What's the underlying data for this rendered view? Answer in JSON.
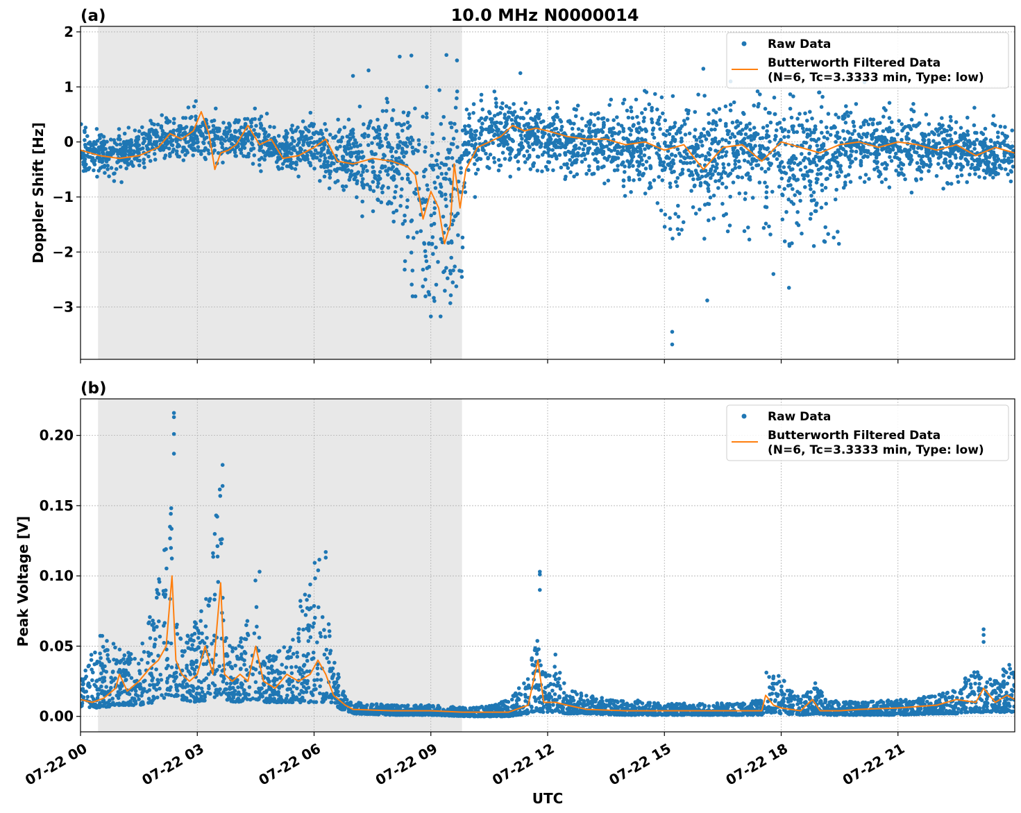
{
  "figure": {
    "title": "10.0 MHz N0000014",
    "xlabel": "UTC"
  },
  "chart_data": [
    {
      "type": "scatter",
      "panel_label": "(a)",
      "ylabel": "Doppler Shift [Hz]",
      "xlim_hours": [
        0,
        24
      ],
      "ylim": [
        -3.95,
        2.1
      ],
      "yticks": [
        2,
        1,
        0,
        -1,
        -2,
        -3
      ],
      "ytick_labels": [
        "2",
        "1",
        "0",
        "−1",
        "−2",
        "−3"
      ],
      "grid": true,
      "shaded_x_hours": [
        0.45,
        9.8
      ],
      "legend_position": "top-right",
      "legend": [
        "Raw Data",
        "Butterworth Filtered Data",
        "(N=6, Tc=3.3333 min, Type: low)"
      ],
      "series": [
        {
          "name": "Raw Data",
          "style": "dots",
          "color": "#1f77b4",
          "band_center_x": [
            0,
            1,
            2,
            3,
            3.5,
            4,
            4.5,
            5,
            6,
            6.5,
            7,
            7.5,
            8,
            8.5,
            9,
            9.5,
            10,
            10.5,
            11,
            12,
            13,
            14,
            15,
            16,
            17,
            18,
            19,
            20,
            21,
            22,
            23,
            24
          ],
          "band_center_y": [
            -0.2,
            -0.25,
            0.05,
            0.15,
            0.1,
            0.0,
            0.1,
            -0.15,
            -0.05,
            -0.3,
            -0.35,
            -0.4,
            -0.45,
            -0.5,
            -0.55,
            -0.5,
            -0.05,
            0.1,
            0.15,
            0.05,
            0.0,
            -0.1,
            -0.05,
            -0.2,
            -0.1,
            -0.15,
            -0.2,
            -0.05,
            -0.1,
            -0.1,
            -0.2,
            -0.2
          ],
          "band_width_y": [
            0.35,
            0.35,
            0.35,
            0.4,
            0.4,
            0.35,
            0.4,
            0.35,
            0.4,
            0.5,
            0.7,
            0.8,
            0.9,
            1.1,
            1.2,
            1.2,
            0.6,
            0.6,
            0.5,
            0.5,
            0.5,
            0.6,
            0.7,
            0.8,
            0.8,
            0.8,
            0.8,
            0.55,
            0.5,
            0.45,
            0.45,
            0.45
          ],
          "outlier_points": [
            [
              7.0,
              1.2
            ],
            [
              7.4,
              1.3
            ],
            [
              8.2,
              1.55
            ],
            [
              8.5,
              1.57
            ],
            [
              9.4,
              1.58
            ],
            [
              9.0,
              -3.17
            ],
            [
              9.25,
              -3.17
            ],
            [
              9.5,
              -2.93
            ],
            [
              15.2,
              -3.45
            ],
            [
              15.2,
              -3.68
            ],
            [
              16.0,
              1.33
            ],
            [
              16.7,
              1.1
            ],
            [
              18.0,
              1.15
            ],
            [
              11.3,
              1.25
            ],
            [
              16.1,
              -2.88
            ],
            [
              17.8,
              -2.4
            ],
            [
              18.2,
              -2.65
            ]
          ]
        },
        {
          "name": "Butterworth Filtered Data",
          "style": "line",
          "color": "#ff7f0e",
          "x": [
            0,
            0.5,
            1,
            1.5,
            2,
            2.3,
            2.6,
            2.9,
            3.1,
            3.3,
            3.45,
            3.6,
            3.8,
            4.0,
            4.3,
            4.6,
            4.9,
            5.2,
            5.6,
            6.0,
            6.3,
            6.6,
            7.0,
            7.5,
            8.0,
            8.4,
            8.6,
            8.8,
            9.0,
            9.2,
            9.35,
            9.5,
            9.6,
            9.75,
            9.9,
            10.2,
            10.5,
            10.8,
            11.1,
            11.4,
            11.7,
            12.0,
            12.5,
            13,
            13.5,
            14,
            14.5,
            15,
            15.5,
            16,
            16.5,
            17,
            17.5,
            18,
            18.5,
            19,
            19.5,
            20,
            20.5,
            21,
            21.5,
            22,
            22.5,
            23,
            23.5,
            24
          ],
          "y": [
            -0.15,
            -0.25,
            -0.3,
            -0.25,
            -0.1,
            0.15,
            0.05,
            0.2,
            0.55,
            0.15,
            -0.5,
            -0.2,
            -0.15,
            -0.05,
            0.3,
            -0.05,
            0.05,
            -0.3,
            -0.25,
            -0.1,
            0.05,
            -0.35,
            -0.4,
            -0.3,
            -0.35,
            -0.45,
            -0.6,
            -1.4,
            -0.9,
            -1.2,
            -1.85,
            -1.5,
            -0.4,
            -1.2,
            -0.5,
            -0.1,
            0.0,
            0.1,
            0.3,
            0.2,
            0.25,
            0.2,
            0.1,
            0.05,
            0.05,
            -0.05,
            0.0,
            -0.15,
            -0.05,
            -0.5,
            -0.1,
            -0.05,
            -0.35,
            0.0,
            -0.1,
            -0.2,
            -0.05,
            0.0,
            -0.1,
            0.0,
            -0.05,
            -0.15,
            -0.05,
            -0.25,
            -0.1,
            -0.2
          ]
        }
      ]
    },
    {
      "type": "scatter",
      "panel_label": "(b)",
      "ylabel": "Peak Voltage [V]",
      "xlabel": "UTC",
      "xlim_hours": [
        0,
        24
      ],
      "ylim": [
        -0.011,
        0.226
      ],
      "yticks": [
        0.0,
        0.05,
        0.1,
        0.15,
        0.2
      ],
      "ytick_labels": [
        "0.00",
        "0.05",
        "0.10",
        "0.15",
        "0.20"
      ],
      "xticks_hours": [
        0,
        3,
        6,
        9,
        12,
        15,
        18,
        21
      ],
      "xtick_labels": [
        "07-22 00",
        "07-22 03",
        "07-22 06",
        "07-22 09",
        "07-22 12",
        "07-22 15",
        "07-22 18",
        "07-22 21"
      ],
      "grid": true,
      "shaded_x_hours": [
        0.45,
        9.8
      ],
      "legend_position": "top-right",
      "legend": [
        "Raw Data",
        "Butterworth Filtered Data",
        "(N=6, Tc=3.3333 min, Type: low)"
      ],
      "series": [
        {
          "name": "Raw Data",
          "style": "dots",
          "color": "#1f77b4",
          "envelope_x": [
            0,
            0.5,
            1,
            1.5,
            1.9,
            2.1,
            2.3,
            2.4,
            2.6,
            3.0,
            3.3,
            3.5,
            3.6,
            3.7,
            4.0,
            4.4,
            4.5,
            4.7,
            5.0,
            5.4,
            5.7,
            6.0,
            6.2,
            6.4,
            6.7,
            7.0,
            8,
            9,
            10,
            10.5,
            11,
            11.5,
            11.7,
            11.9,
            12.2,
            12.5,
            13,
            14,
            15,
            16,
            17,
            17.5,
            17.6,
            18,
            18.5,
            18.9,
            19.2,
            20,
            21,
            22,
            22.5,
            22.8,
            23.2,
            23.5,
            23.8,
            24
          ],
          "envelope_top": [
            0.025,
            0.06,
            0.05,
            0.045,
            0.085,
            0.11,
            0.18,
            0.1,
            0.055,
            0.07,
            0.09,
            0.15,
            0.17,
            0.06,
            0.05,
            0.075,
            0.1,
            0.04,
            0.05,
            0.05,
            0.09,
            0.11,
            0.115,
            0.06,
            0.02,
            0.01,
            0.008,
            0.008,
            0.006,
            0.008,
            0.012,
            0.028,
            0.06,
            0.03,
            0.04,
            0.02,
            0.015,
            0.012,
            0.01,
            0.009,
            0.01,
            0.012,
            0.033,
            0.028,
            0.012,
            0.03,
            0.012,
            0.01,
            0.012,
            0.015,
            0.02,
            0.035,
            0.03,
            0.025,
            0.04,
            0.03
          ],
          "envelope_bottom": [
            0.007,
            0.006,
            0.008,
            0.008,
            0.01,
            0.012,
            0.015,
            0.014,
            0.012,
            0.01,
            0.012,
            0.014,
            0.016,
            0.012,
            0.01,
            0.012,
            0.012,
            0.01,
            0.01,
            0.01,
            0.01,
            0.01,
            0.01,
            0.01,
            0.005,
            0.002,
            0.001,
            0.001,
            0.0,
            0.0,
            0.0,
            0.002,
            0.004,
            0.003,
            0.003,
            0.002,
            0.002,
            0.001,
            0.001,
            0.001,
            0.001,
            0.001,
            0.003,
            0.002,
            0.001,
            0.002,
            0.001,
            0.001,
            0.001,
            0.002,
            0.002,
            0.003,
            0.003,
            0.003,
            0.003,
            0.003
          ],
          "outlier_points": [
            [
              2.4,
              0.216
            ],
            [
              2.4,
              0.213
            ],
            [
              2.4,
              0.201
            ],
            [
              2.4,
              0.187
            ],
            [
              3.65,
              0.179
            ],
            [
              3.65,
              0.164
            ],
            [
              6.3,
              0.117
            ],
            [
              6.3,
              0.113
            ],
            [
              4.6,
              0.103
            ],
            [
              11.8,
              0.103
            ],
            [
              11.8,
              0.101
            ],
            [
              11.8,
              0.09
            ],
            [
              23.2,
              0.062
            ],
            [
              23.2,
              0.058
            ],
            [
              23.2,
              0.053
            ],
            [
              12.2,
              0.044
            ]
          ]
        },
        {
          "name": "Butterworth Filtered Data",
          "style": "line",
          "color": "#ff7f0e",
          "x": [
            0,
            0.3,
            0.6,
            0.9,
            1.0,
            1.2,
            1.5,
            1.8,
            2.0,
            2.2,
            2.35,
            2.45,
            2.6,
            2.8,
            3.0,
            3.2,
            3.4,
            3.6,
            3.7,
            3.9,
            4.1,
            4.3,
            4.5,
            4.7,
            5.0,
            5.3,
            5.6,
            5.9,
            6.1,
            6.3,
            6.5,
            6.8,
            7.0,
            8,
            9,
            9.8,
            10,
            11,
            11.5,
            11.75,
            11.9,
            12.2,
            12.5,
            13,
            14,
            15,
            16,
            17,
            17.5,
            17.6,
            17.8,
            18,
            18.5,
            18.8,
            19,
            19.5,
            20,
            21,
            22,
            22.5,
            23,
            23.2,
            23.5,
            23.8,
            24
          ],
          "y": [
            0.012,
            0.01,
            0.013,
            0.02,
            0.03,
            0.018,
            0.025,
            0.035,
            0.04,
            0.05,
            0.1,
            0.04,
            0.03,
            0.025,
            0.03,
            0.05,
            0.03,
            0.095,
            0.03,
            0.025,
            0.03,
            0.025,
            0.05,
            0.025,
            0.02,
            0.03,
            0.025,
            0.03,
            0.04,
            0.03,
            0.015,
            0.008,
            0.005,
            0.004,
            0.004,
            0.003,
            0.003,
            0.003,
            0.008,
            0.04,
            0.01,
            0.01,
            0.008,
            0.005,
            0.004,
            0.004,
            0.004,
            0.004,
            0.004,
            0.015,
            0.008,
            0.006,
            0.004,
            0.012,
            0.004,
            0.004,
            0.005,
            0.006,
            0.008,
            0.012,
            0.01,
            0.02,
            0.01,
            0.015,
            0.012
          ]
        }
      ]
    }
  ]
}
